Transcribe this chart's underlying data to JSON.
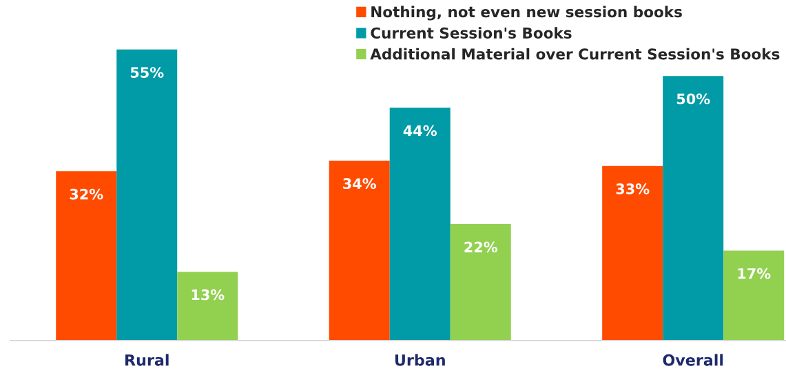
{
  "chart_data": {
    "type": "bar",
    "categories": [
      "Rural",
      "Urban",
      "Overall"
    ],
    "series": [
      {
        "name": "Nothing, not even new session books",
        "color": "#ff4b00",
        "values": [
          32,
          34,
          33
        ],
        "value_labels": [
          "32%",
          "34%",
          "33%"
        ]
      },
      {
        "name": "Current Session's Books",
        "color": "#009ba6",
        "values": [
          55,
          44,
          50
        ],
        "value_labels": [
          "55%",
          "44%",
          "50%"
        ]
      },
      {
        "name": "Additional Material over Current Session's Books",
        "color": "#92d050",
        "values": [
          13,
          22,
          17
        ],
        "value_labels": [
          "13%",
          "22%",
          "17%"
        ]
      }
    ],
    "tick_labels": "x",
    "grid": false,
    "legend": "top right"
  }
}
